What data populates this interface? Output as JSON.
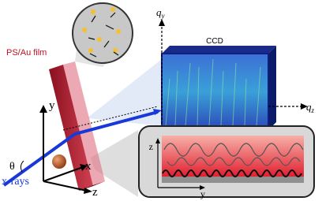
{
  "film_label": "PS/Au film",
  "detector_label": "CCD",
  "detector_axes": {
    "vertical": {
      "symbol": "q",
      "subscript": "y"
    },
    "horizontal": {
      "symbol": "q",
      "subscript": "z"
    }
  },
  "sample_axes": {
    "y": "y",
    "x": "x",
    "z": "z"
  },
  "angle_label": "θ",
  "beam_label": "x-rays",
  "inset_axes": {
    "z": "z",
    "y": "y"
  }
}
